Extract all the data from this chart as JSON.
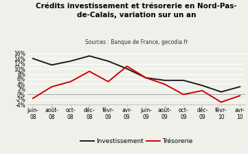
{
  "title": "Crédits investissement et trésorerie en Nord-Pas-\nde-Calais, variation sur un an",
  "subtitle": "Sources : Banque de France, gecodia.fr",
  "x_labels": [
    "juin-\n08",
    "août-\n08",
    "oct-\n08",
    "déc-\n08",
    "févr-\n09",
    "avr-\n09",
    "juin-\n09",
    "août-\n09",
    "oct-\n09",
    "déc-\n09",
    "févr-\n10",
    "avr-\n10"
  ],
  "investissement": [
    14.0,
    11.5,
    13.0,
    15.0,
    13.0,
    10.0,
    6.5,
    5.5,
    5.5,
    3.5,
    1.0,
    3.0
  ],
  "tresorerie": [
    -1.5,
    3.0,
    5.0,
    9.0,
    5.0,
    11.0,
    6.5,
    4.0,
    0.0,
    1.5,
    -3.0,
    -0.5
  ],
  "invest_color": "#1a1a1a",
  "tresorerie_color": "#cc0000",
  "ylim": [
    -4,
    17
  ],
  "yticks": [
    -4,
    -2,
    0,
    2,
    4,
    6,
    8,
    10,
    12,
    14,
    16
  ],
  "ytick_labels": [
    "-4%",
    "-2%",
    "0%",
    "2%",
    "4%",
    "6%",
    "8%",
    "10%",
    "12%",
    "14%",
    "16%"
  ],
  "legend_invest": "Investissement",
  "legend_tres": "Trésorerie",
  "bg_color": "#f0f0ea",
  "grid_color": "#ffffff",
  "title_fontsize": 7.5,
  "subtitle_fontsize": 5.5,
  "tick_fontsize": 5.5,
  "legend_fontsize": 6.5
}
